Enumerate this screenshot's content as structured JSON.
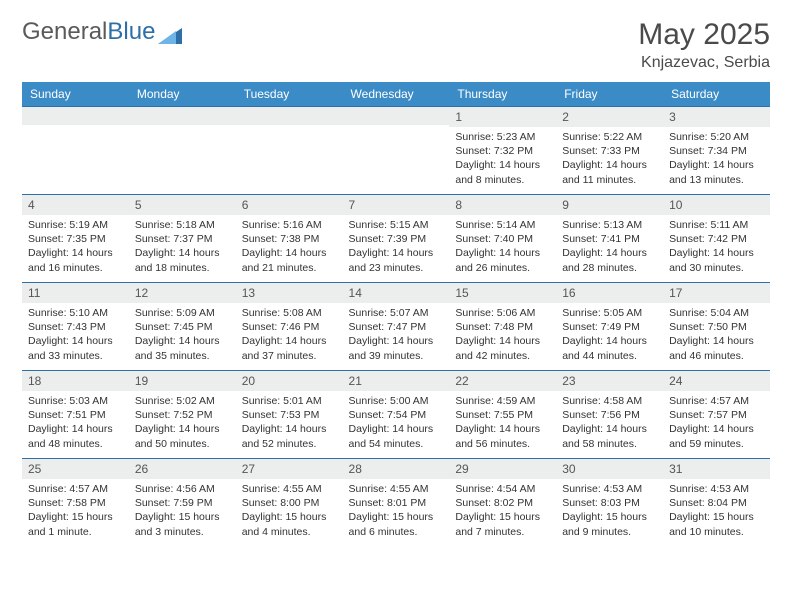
{
  "brand": {
    "part1": "General",
    "part2": "Blue"
  },
  "title": "May 2025",
  "location": "Knjazevac, Serbia",
  "colors": {
    "header_bg": "#3b8bc6",
    "header_text": "#ffffff",
    "row_border": "#2f6fa7",
    "daynum_bg": "#eceded",
    "text": "#333333",
    "logo_gray": "#5a5a5a",
    "logo_blue": "#2f6fa7"
  },
  "day_headers": [
    "Sunday",
    "Monday",
    "Tuesday",
    "Wednesday",
    "Thursday",
    "Friday",
    "Saturday"
  ],
  "weeks": [
    [
      {
        "n": "",
        "sunrise": "",
        "sunset": "",
        "daylight": ""
      },
      {
        "n": "",
        "sunrise": "",
        "sunset": "",
        "daylight": ""
      },
      {
        "n": "",
        "sunrise": "",
        "sunset": "",
        "daylight": ""
      },
      {
        "n": "",
        "sunrise": "",
        "sunset": "",
        "daylight": ""
      },
      {
        "n": "1",
        "sunrise": "Sunrise: 5:23 AM",
        "sunset": "Sunset: 7:32 PM",
        "daylight": "Daylight: 14 hours and 8 minutes."
      },
      {
        "n": "2",
        "sunrise": "Sunrise: 5:22 AM",
        "sunset": "Sunset: 7:33 PM",
        "daylight": "Daylight: 14 hours and 11 minutes."
      },
      {
        "n": "3",
        "sunrise": "Sunrise: 5:20 AM",
        "sunset": "Sunset: 7:34 PM",
        "daylight": "Daylight: 14 hours and 13 minutes."
      }
    ],
    [
      {
        "n": "4",
        "sunrise": "Sunrise: 5:19 AM",
        "sunset": "Sunset: 7:35 PM",
        "daylight": "Daylight: 14 hours and 16 minutes."
      },
      {
        "n": "5",
        "sunrise": "Sunrise: 5:18 AM",
        "sunset": "Sunset: 7:37 PM",
        "daylight": "Daylight: 14 hours and 18 minutes."
      },
      {
        "n": "6",
        "sunrise": "Sunrise: 5:16 AM",
        "sunset": "Sunset: 7:38 PM",
        "daylight": "Daylight: 14 hours and 21 minutes."
      },
      {
        "n": "7",
        "sunrise": "Sunrise: 5:15 AM",
        "sunset": "Sunset: 7:39 PM",
        "daylight": "Daylight: 14 hours and 23 minutes."
      },
      {
        "n": "8",
        "sunrise": "Sunrise: 5:14 AM",
        "sunset": "Sunset: 7:40 PM",
        "daylight": "Daylight: 14 hours and 26 minutes."
      },
      {
        "n": "9",
        "sunrise": "Sunrise: 5:13 AM",
        "sunset": "Sunset: 7:41 PM",
        "daylight": "Daylight: 14 hours and 28 minutes."
      },
      {
        "n": "10",
        "sunrise": "Sunrise: 5:11 AM",
        "sunset": "Sunset: 7:42 PM",
        "daylight": "Daylight: 14 hours and 30 minutes."
      }
    ],
    [
      {
        "n": "11",
        "sunrise": "Sunrise: 5:10 AM",
        "sunset": "Sunset: 7:43 PM",
        "daylight": "Daylight: 14 hours and 33 minutes."
      },
      {
        "n": "12",
        "sunrise": "Sunrise: 5:09 AM",
        "sunset": "Sunset: 7:45 PM",
        "daylight": "Daylight: 14 hours and 35 minutes."
      },
      {
        "n": "13",
        "sunrise": "Sunrise: 5:08 AM",
        "sunset": "Sunset: 7:46 PM",
        "daylight": "Daylight: 14 hours and 37 minutes."
      },
      {
        "n": "14",
        "sunrise": "Sunrise: 5:07 AM",
        "sunset": "Sunset: 7:47 PM",
        "daylight": "Daylight: 14 hours and 39 minutes."
      },
      {
        "n": "15",
        "sunrise": "Sunrise: 5:06 AM",
        "sunset": "Sunset: 7:48 PM",
        "daylight": "Daylight: 14 hours and 42 minutes."
      },
      {
        "n": "16",
        "sunrise": "Sunrise: 5:05 AM",
        "sunset": "Sunset: 7:49 PM",
        "daylight": "Daylight: 14 hours and 44 minutes."
      },
      {
        "n": "17",
        "sunrise": "Sunrise: 5:04 AM",
        "sunset": "Sunset: 7:50 PM",
        "daylight": "Daylight: 14 hours and 46 minutes."
      }
    ],
    [
      {
        "n": "18",
        "sunrise": "Sunrise: 5:03 AM",
        "sunset": "Sunset: 7:51 PM",
        "daylight": "Daylight: 14 hours and 48 minutes."
      },
      {
        "n": "19",
        "sunrise": "Sunrise: 5:02 AM",
        "sunset": "Sunset: 7:52 PM",
        "daylight": "Daylight: 14 hours and 50 minutes."
      },
      {
        "n": "20",
        "sunrise": "Sunrise: 5:01 AM",
        "sunset": "Sunset: 7:53 PM",
        "daylight": "Daylight: 14 hours and 52 minutes."
      },
      {
        "n": "21",
        "sunrise": "Sunrise: 5:00 AM",
        "sunset": "Sunset: 7:54 PM",
        "daylight": "Daylight: 14 hours and 54 minutes."
      },
      {
        "n": "22",
        "sunrise": "Sunrise: 4:59 AM",
        "sunset": "Sunset: 7:55 PM",
        "daylight": "Daylight: 14 hours and 56 minutes."
      },
      {
        "n": "23",
        "sunrise": "Sunrise: 4:58 AM",
        "sunset": "Sunset: 7:56 PM",
        "daylight": "Daylight: 14 hours and 58 minutes."
      },
      {
        "n": "24",
        "sunrise": "Sunrise: 4:57 AM",
        "sunset": "Sunset: 7:57 PM",
        "daylight": "Daylight: 14 hours and 59 minutes."
      }
    ],
    [
      {
        "n": "25",
        "sunrise": "Sunrise: 4:57 AM",
        "sunset": "Sunset: 7:58 PM",
        "daylight": "Daylight: 15 hours and 1 minute."
      },
      {
        "n": "26",
        "sunrise": "Sunrise: 4:56 AM",
        "sunset": "Sunset: 7:59 PM",
        "daylight": "Daylight: 15 hours and 3 minutes."
      },
      {
        "n": "27",
        "sunrise": "Sunrise: 4:55 AM",
        "sunset": "Sunset: 8:00 PM",
        "daylight": "Daylight: 15 hours and 4 minutes."
      },
      {
        "n": "28",
        "sunrise": "Sunrise: 4:55 AM",
        "sunset": "Sunset: 8:01 PM",
        "daylight": "Daylight: 15 hours and 6 minutes."
      },
      {
        "n": "29",
        "sunrise": "Sunrise: 4:54 AM",
        "sunset": "Sunset: 8:02 PM",
        "daylight": "Daylight: 15 hours and 7 minutes."
      },
      {
        "n": "30",
        "sunrise": "Sunrise: 4:53 AM",
        "sunset": "Sunset: 8:03 PM",
        "daylight": "Daylight: 15 hours and 9 minutes."
      },
      {
        "n": "31",
        "sunrise": "Sunrise: 4:53 AM",
        "sunset": "Sunset: 8:04 PM",
        "daylight": "Daylight: 15 hours and 10 minutes."
      }
    ]
  ]
}
